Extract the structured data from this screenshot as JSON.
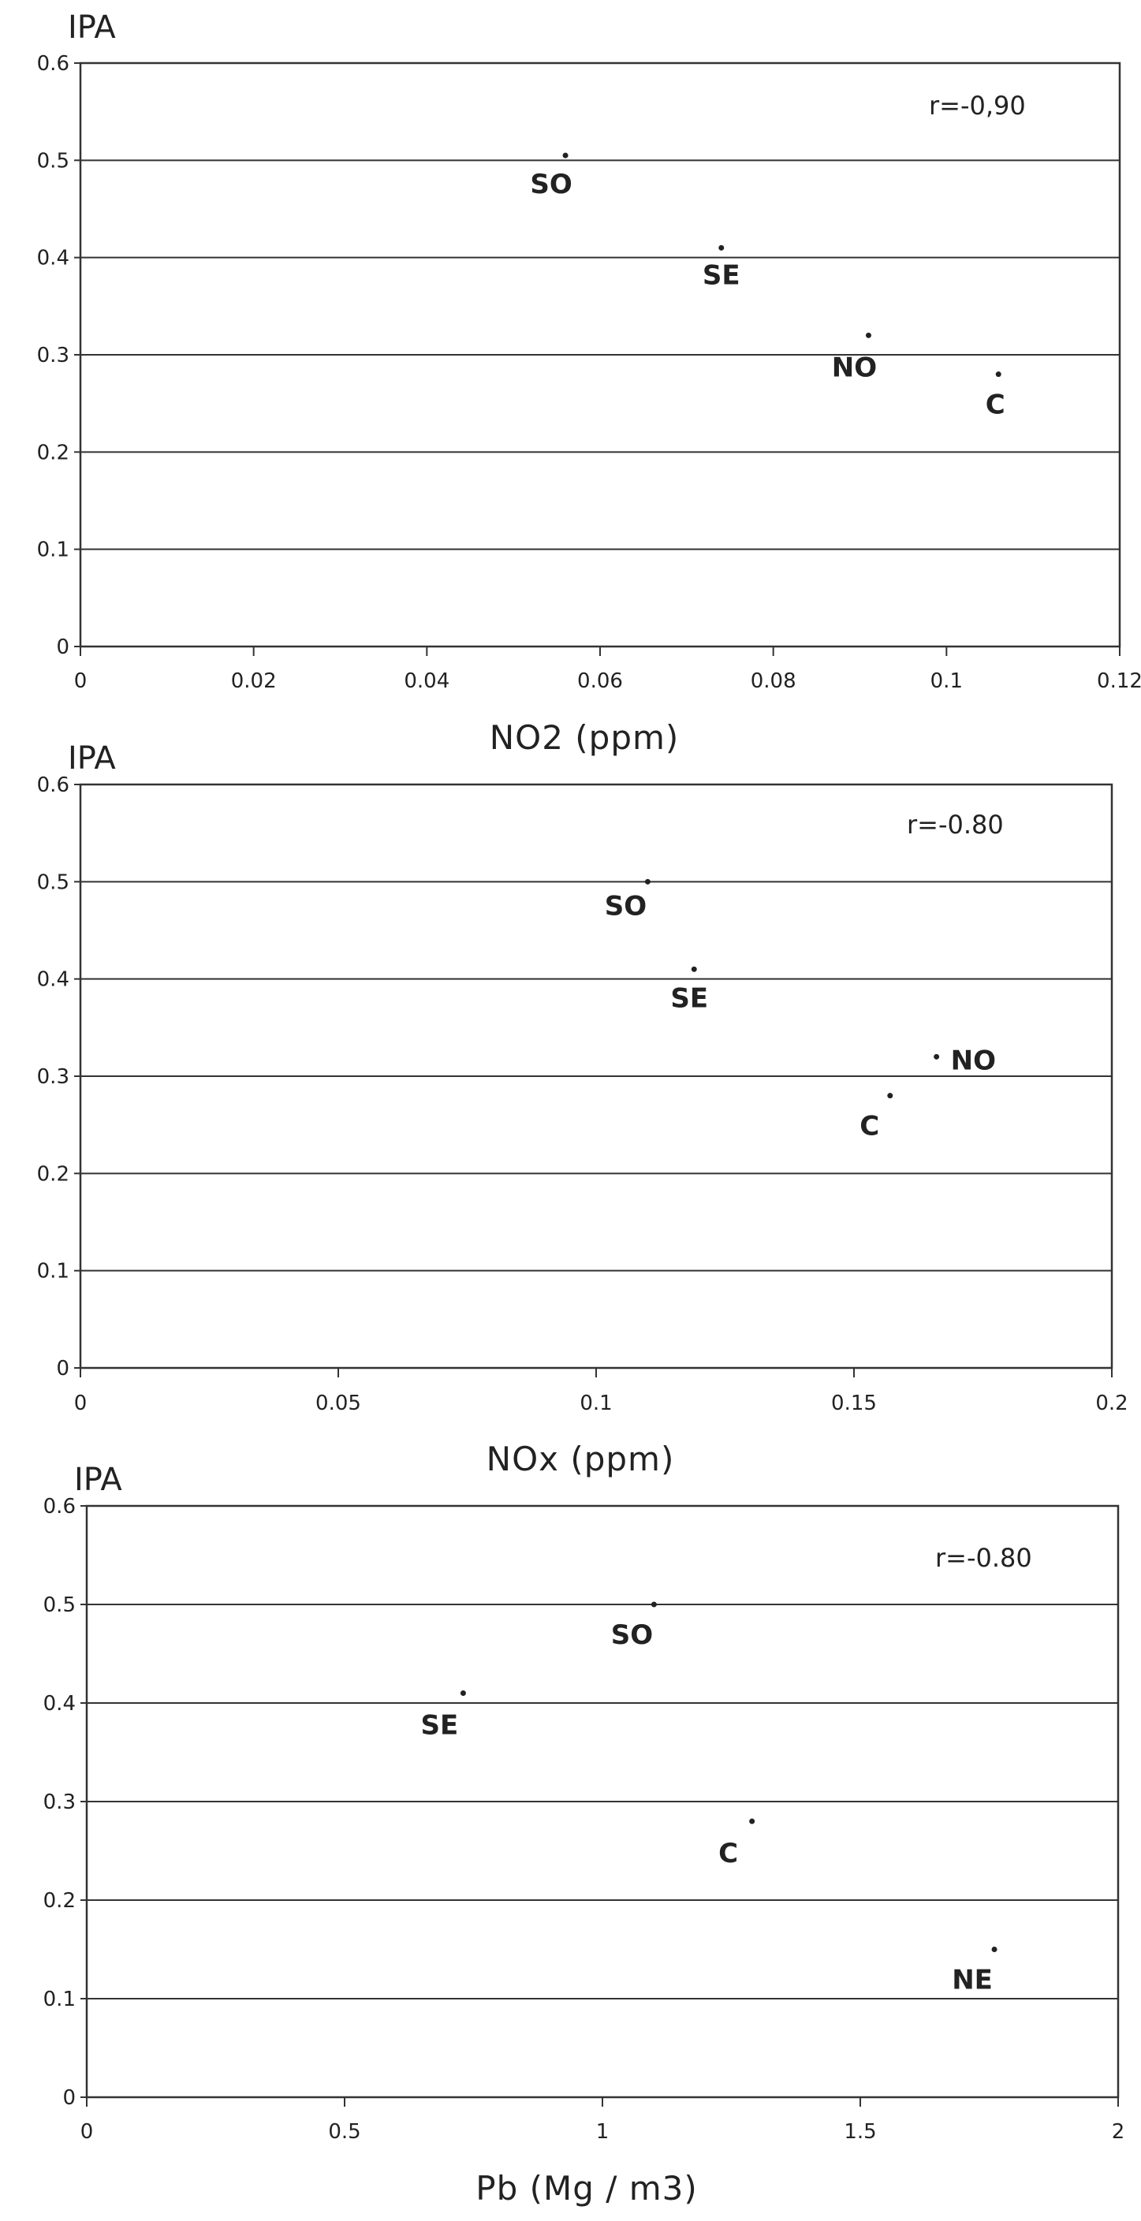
{
  "chart_data": [
    {
      "type": "scatter",
      "ylabel": "IPA",
      "xlabel": "NO2 (ppm)",
      "annotation": "r=-0,90",
      "xlim": [
        0,
        0.12
      ],
      "ylim": [
        0,
        0.6
      ],
      "xticks": [
        "0",
        "0.02",
        "0.04",
        "0.06",
        "0.08",
        "0.1",
        "0.12"
      ],
      "xtick_values": [
        0,
        0.02,
        0.04,
        0.06,
        0.08,
        0.1,
        0.12
      ],
      "yticks": [
        "0",
        "0.1",
        "0.2",
        "0.3",
        "0.4",
        "0.5",
        "0.6"
      ],
      "ytick_values": [
        0,
        0.1,
        0.2,
        0.3,
        0.4,
        0.5,
        0.6
      ],
      "grid": "horizontal",
      "points": [
        {
          "label": "SO",
          "x": 0.056,
          "y": 0.505
        },
        {
          "label": "SE",
          "x": 0.074,
          "y": 0.41
        },
        {
          "label": "NO",
          "x": 0.091,
          "y": 0.32
        },
        {
          "label": "C",
          "x": 0.106,
          "y": 0.28
        }
      ]
    },
    {
      "type": "scatter",
      "ylabel": "IPA",
      "xlabel": "NOx (ppm)",
      "annotation": "r=-0.80",
      "xlim": [
        0,
        0.2
      ],
      "ylim": [
        0,
        0.6
      ],
      "xticks": [
        "0",
        "0.05",
        "0.1",
        "0.15",
        "0.2"
      ],
      "xtick_values": [
        0,
        0.05,
        0.1,
        0.15,
        0.2
      ],
      "yticks": [
        "0",
        "0.1",
        "0.2",
        "0.3",
        "0.4",
        "0.5",
        "0.6"
      ],
      "ytick_values": [
        0,
        0.1,
        0.2,
        0.3,
        0.4,
        0.5,
        0.6
      ],
      "grid": "horizontal",
      "points": [
        {
          "label": "SO",
          "x": 0.11,
          "y": 0.5
        },
        {
          "label": "SE",
          "x": 0.119,
          "y": 0.41
        },
        {
          "label": "NO",
          "x": 0.166,
          "y": 0.32
        },
        {
          "label": "C",
          "x": 0.157,
          "y": 0.28
        }
      ]
    },
    {
      "type": "scatter",
      "ylabel": "IPA",
      "xlabel": "Pb (Mg / m3)",
      "annotation": "r=-0.80",
      "xlim": [
        0,
        2
      ],
      "ylim": [
        0,
        0.6
      ],
      "xticks": [
        "0",
        "0.5",
        "1",
        "1.5",
        "2"
      ],
      "xtick_values": [
        0,
        0.5,
        1,
        1.5,
        2
      ],
      "yticks": [
        "0",
        "0.1",
        "0.2",
        "0.3",
        "0.4",
        "0.5",
        "0.6"
      ],
      "ytick_values": [
        0,
        0.1,
        0.2,
        0.3,
        0.4,
        0.5,
        0.6
      ],
      "grid": "horizontal",
      "points": [
        {
          "label": "SO",
          "x": 1.1,
          "y": 0.5
        },
        {
          "label": "SE",
          "x": 0.73,
          "y": 0.41
        },
        {
          "label": "C",
          "x": 1.29,
          "y": 0.28
        },
        {
          "label": "NE",
          "x": 1.76,
          "y": 0.15
        }
      ]
    }
  ]
}
